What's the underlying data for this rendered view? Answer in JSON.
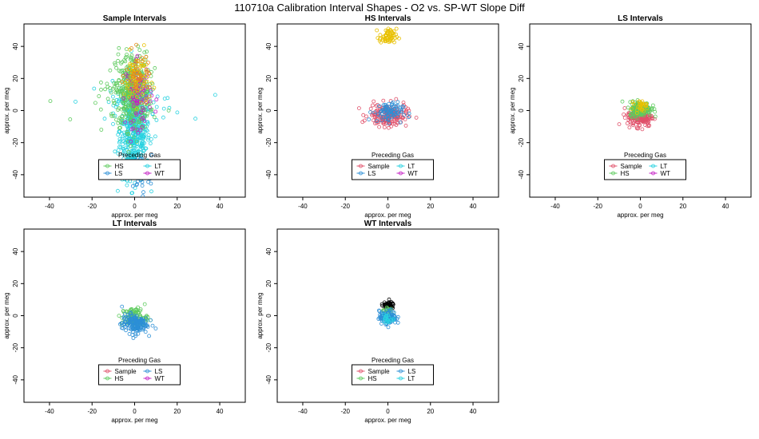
{
  "page": {
    "title": "110710a   Calibration Interval Shapes - O2 vs. SP-WT Slope Diff"
  },
  "colors": {
    "Sample": "#e0506a",
    "HS": "#5ecb5e",
    "LS": "#2c8fd6",
    "LT": "#28d2e0",
    "WT": "#c41fc4",
    "black": "#000000",
    "yellow": "#e8c000",
    "orange": "#e88a18"
  },
  "chart_data": [
    {
      "type": "scatter",
      "title": "Sample Intervals",
      "xlabel": "approx. per meg",
      "ylabel": "approx. per meg",
      "xlim": [
        -52,
        52
      ],
      "ylim": [
        -54,
        54
      ],
      "xticks": [
        "-40",
        "-20",
        "0",
        "20",
        "40"
      ],
      "yticks": [
        "40",
        "20",
        "0",
        "-20",
        "-40"
      ],
      "legend": {
        "title": "Preceding Gas",
        "entries": [
          "HS",
          "LT",
          "LS",
          "WT"
        ],
        "position": "bottom-center"
      },
      "clusters": [
        {
          "series": "LT",
          "cx": 0,
          "cy": -12,
          "sx": 3.5,
          "sy": 15,
          "n": 520
        },
        {
          "series": "LT",
          "cx": 0,
          "cy": 5,
          "sx": 12,
          "sy": 6,
          "n": 40
        },
        {
          "series": "LS",
          "cx": 2,
          "cy": -40,
          "sx": 3,
          "sy": 6,
          "n": 60
        },
        {
          "series": "HS",
          "cx": -1,
          "cy": 12,
          "sx": 4,
          "sy": 12,
          "n": 420
        },
        {
          "series": "HS",
          "cx": -2,
          "cy": 5,
          "sx": 10,
          "sy": 6,
          "n": 40
        },
        {
          "series": "WT",
          "cx": 2,
          "cy": 10,
          "sx": 3,
          "sy": 10,
          "n": 90
        },
        {
          "series": "yellow",
          "cx": 1,
          "cy": 20,
          "sx": 3,
          "sy": 8,
          "n": 70
        },
        {
          "series": "orange",
          "cx": 2,
          "cy": 22,
          "sx": 3,
          "sy": 7,
          "n": 40
        }
      ]
    },
    {
      "type": "scatter",
      "title": "HS Intervals",
      "xlabel": "approx. per meg",
      "ylabel": "approx. per meg",
      "xlim": [
        -52,
        52
      ],
      "ylim": [
        -54,
        54
      ],
      "xticks": [
        "-40",
        "-20",
        "0",
        "20",
        "40"
      ],
      "yticks": [
        "40",
        "20",
        "0",
        "-20",
        "-40"
      ],
      "legend": {
        "title": "Preceding Gas",
        "entries": [
          "Sample",
          "LT",
          "LS",
          "WT"
        ],
        "position": "bottom-center"
      },
      "clusters": [
        {
          "series": "Sample",
          "cx": 0,
          "cy": -3,
          "sx": 4.5,
          "sy": 3.5,
          "n": 180
        },
        {
          "series": "LS",
          "cx": 0,
          "cy": -1,
          "sx": 3.5,
          "sy": 3,
          "n": 80
        },
        {
          "series": "yellow",
          "cx": 0,
          "cy": 46,
          "sx": 2,
          "sy": 2.5,
          "n": 60
        }
      ]
    },
    {
      "type": "scatter",
      "title": "LS Intervals",
      "xlabel": "approx. per meg",
      "ylabel": "approx. per meg",
      "xlim": [
        -52,
        52
      ],
      "ylim": [
        -54,
        54
      ],
      "xticks": [
        "-40",
        "-20",
        "0",
        "20",
        "40"
      ],
      "yticks": [
        "40",
        "20",
        "0",
        "-20",
        "-40"
      ],
      "legend": {
        "title": "Preceding Gas",
        "entries": [
          "Sample",
          "LT",
          "HS",
          "WT"
        ],
        "position": "bottom-center"
      },
      "clusters": [
        {
          "series": "Sample",
          "cx": 0,
          "cy": -4,
          "sx": 3,
          "sy": 3,
          "n": 160
        },
        {
          "series": "HS",
          "cx": 0,
          "cy": 1,
          "sx": 2.5,
          "sy": 2.2,
          "n": 200
        },
        {
          "series": "yellow",
          "cx": 0,
          "cy": 3,
          "sx": 1.5,
          "sy": 1.5,
          "n": 30
        }
      ]
    },
    {
      "type": "scatter",
      "title": "LT Intervals",
      "xlabel": "approx. per meg",
      "ylabel": "approx. per meg",
      "xlim": [
        -52,
        52
      ],
      "ylim": [
        -54,
        54
      ],
      "xticks": [
        "-40",
        "-20",
        "0",
        "20",
        "40"
      ],
      "yticks": [
        "40",
        "20",
        "0",
        "-20",
        "-40"
      ],
      "legend": {
        "title": "Preceding Gas",
        "entries": [
          "Sample",
          "LS",
          "HS",
          "WT"
        ],
        "position": "bottom-center"
      },
      "clusters": [
        {
          "series": "HS",
          "cx": 0,
          "cy": -1,
          "sx": 3,
          "sy": 3,
          "n": 110
        },
        {
          "series": "LS",
          "cx": 0,
          "cy": -5,
          "sx": 3,
          "sy": 3,
          "n": 160
        }
      ]
    },
    {
      "type": "scatter",
      "title": "WT Intervals",
      "xlabel": "approx. per meg",
      "ylabel": "approx. per meg",
      "xlim": [
        -52,
        52
      ],
      "ylim": [
        -54,
        54
      ],
      "xticks": [
        "-40",
        "-20",
        "0",
        "20",
        "40"
      ],
      "yticks": [
        "40",
        "20",
        "0",
        "-20",
        "-40"
      ],
      "legend": {
        "title": "Preceding Gas",
        "entries": [
          "Sample",
          "LS",
          "HS",
          "LT"
        ],
        "position": "bottom-center"
      },
      "clusters": [
        {
          "series": "black",
          "cx": 0,
          "cy": 6.5,
          "sx": 1.5,
          "sy": 1,
          "n": 50
        },
        {
          "series": "HS",
          "cx": 0,
          "cy": 3,
          "sx": 1.2,
          "sy": 1.2,
          "n": 20
        },
        {
          "series": "LS",
          "cx": 0,
          "cy": -1,
          "sx": 2,
          "sy": 2,
          "n": 120
        },
        {
          "series": "LT",
          "cx": 0,
          "cy": -2,
          "sx": 1.5,
          "sy": 1.5,
          "n": 20
        }
      ]
    }
  ]
}
